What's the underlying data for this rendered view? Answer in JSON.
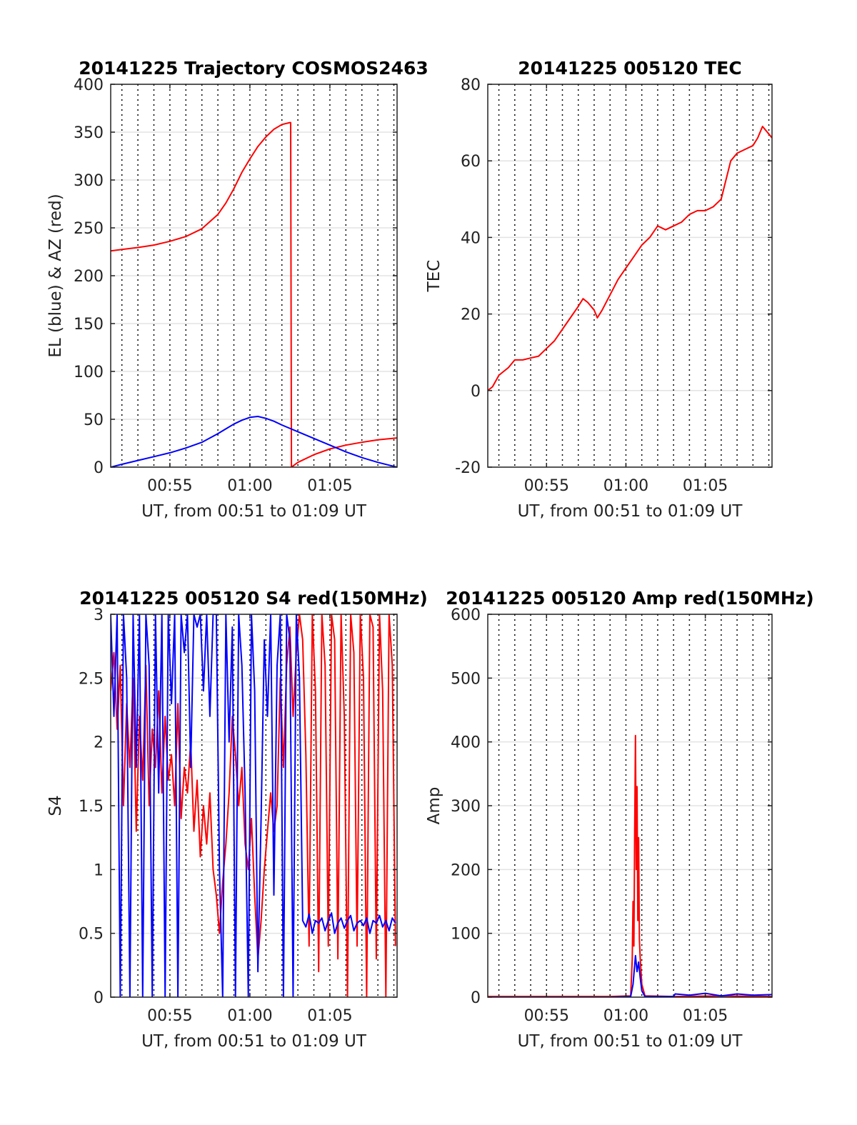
{
  "chart_data": [
    {
      "type": "line",
      "title": "20141225 Trajectory COSMOS2463",
      "xlabel": "UT, from 00:51 to 01:09 UT",
      "ylabel": "EL (blue) & AZ (red)",
      "x_unit": "minutes after 00:00 UT",
      "xlim": [
        51.3,
        69.2
      ],
      "ylim": [
        0,
        400
      ],
      "x_ticks": [
        55,
        60,
        65
      ],
      "x_tick_labels": [
        "00:55",
        "01:00",
        "01:05"
      ],
      "y_ticks": [
        0,
        50,
        100,
        150,
        200,
        250,
        300,
        350,
        400
      ],
      "y_tick_labels": [
        "0",
        "50",
        "100",
        "150",
        "200",
        "250",
        "300",
        "350",
        "400"
      ],
      "minor_dotted_gridlines_x": [
        52,
        53,
        54,
        55,
        56,
        57,
        58,
        59,
        60,
        61,
        62,
        63,
        64,
        65,
        66,
        67,
        68,
        69
      ],
      "grid": true,
      "series": [
        {
          "color": "#ff0000",
          "x": [
            51.3,
            52,
            53,
            54,
            55,
            56,
            57,
            58,
            58.5,
            59,
            59.5,
            60,
            60.5,
            61,
            61.5,
            62,
            62.5,
            62.55,
            62.6,
            63,
            64,
            65,
            66,
            67,
            68,
            69.2
          ],
          "y": [
            226,
            227.5,
            229.5,
            232,
            236,
            241,
            249,
            264,
            276,
            291,
            308,
            322,
            335,
            345,
            353,
            358,
            360,
            360,
            0,
            5,
            13,
            19,
            23,
            26,
            28.5,
            30.5
          ]
        },
        {
          "color": "#0000ff",
          "x": [
            51.3,
            52,
            53,
            54,
            55,
            56,
            57,
            58,
            58.5,
            59,
            59.5,
            60,
            60.5,
            61,
            61.5,
            62,
            63,
            64,
            65,
            66,
            67,
            68,
            69.2
          ],
          "y": [
            0,
            3,
            7,
            11,
            15,
            20,
            26,
            35,
            40,
            45,
            49,
            52,
            53,
            51,
            48,
            44,
            37,
            30,
            23,
            16,
            10,
            5,
            0
          ]
        }
      ]
    },
    {
      "type": "line",
      "title": "20141225 005120 TEC",
      "xlabel": "UT, from 00:51 to 01:09 UT",
      "ylabel": "TEC",
      "x_unit": "minutes after 00:00 UT",
      "xlim": [
        51.3,
        69.2
      ],
      "ylim": [
        -20,
        80
      ],
      "x_ticks": [
        55,
        60,
        65
      ],
      "x_tick_labels": [
        "00:55",
        "01:00",
        "01:05"
      ],
      "y_ticks": [
        -20,
        0,
        20,
        40,
        60,
        80
      ],
      "y_tick_labels": [
        "-20",
        "0",
        "20",
        "40",
        "60",
        "80"
      ],
      "minor_dotted_gridlines_x": [
        52,
        53,
        54,
        55,
        56,
        57,
        58,
        59,
        60,
        61,
        62,
        63,
        64,
        65,
        66,
        67,
        68,
        69
      ],
      "grid": true,
      "series": [
        {
          "color": "#ff0000",
          "x": [
            51.3,
            51.6,
            52,
            52.3,
            52.6,
            53,
            53.5,
            54,
            54.5,
            55,
            55.5,
            56,
            56.5,
            57,
            57.3,
            57.6,
            58,
            58.2,
            58.5,
            59,
            59.5,
            60,
            60.5,
            61,
            61.5,
            62,
            62.5,
            63,
            63.5,
            64,
            64.5,
            65,
            65.5,
            66,
            66.3,
            66.6,
            67,
            67.5,
            68,
            68.3,
            68.6,
            69,
            69.2
          ],
          "y": [
            0,
            1,
            4,
            5,
            6,
            8,
            8,
            8.5,
            9,
            11,
            13,
            16,
            19,
            22,
            24,
            23,
            21,
            19,
            21,
            25,
            29,
            32,
            35,
            38,
            40,
            43,
            42,
            43,
            44,
            46,
            47,
            47,
            48,
            50,
            55,
            60,
            62,
            63,
            64,
            66,
            69,
            67,
            66
          ]
        }
      ]
    },
    {
      "type": "line",
      "title": "20141225 005120 S4 red(150MHz)",
      "xlabel": "UT, from 00:51 to 01:09 UT",
      "ylabel": "S4",
      "x_unit": "minutes after 00:00 UT",
      "xlim": [
        51.3,
        69.2
      ],
      "ylim": [
        0,
        3
      ],
      "x_ticks": [
        55,
        60,
        65
      ],
      "x_tick_labels": [
        "00:55",
        "01:00",
        "01:05"
      ],
      "y_ticks": [
        0,
        0.5,
        1,
        1.5,
        2,
        2.5,
        3
      ],
      "y_tick_labels": [
        "0",
        "0.5",
        "1",
        "1.5",
        "2",
        "2.5",
        "3"
      ],
      "minor_dotted_gridlines_x": [
        52,
        53,
        54,
        55,
        56,
        57,
        58,
        59,
        60,
        61,
        62,
        63,
        64,
        65,
        66,
        67,
        68,
        69
      ],
      "grid": true,
      "series": [
        {
          "color": "#ff0000",
          "x": [
            51.3,
            51.5,
            51.7,
            51.9,
            52.1,
            52.3,
            52.5,
            52.7,
            52.9,
            53.1,
            53.3,
            53.5,
            53.7,
            53.9,
            54.1,
            54.3,
            54.5,
            54.7,
            54.9,
            55.1,
            55.3,
            55.5,
            55.7,
            55.9,
            56.1,
            56.3,
            56.5,
            56.7,
            56.9,
            57.1,
            57.3,
            57.5,
            57.7,
            57.9,
            58.1,
            58.3,
            58.5,
            58.7,
            58.9,
            59.1,
            59.3,
            59.5,
            59.7,
            59.9,
            60.1,
            60.3,
            60.5,
            60.7,
            60.9,
            61.1,
            61.3,
            61.5,
            61.7,
            61.9,
            62.1,
            62.3,
            62.5,
            62.7,
            62.9,
            63.1,
            63.3,
            63.5,
            63.7,
            63.9,
            64.1,
            64.3,
            64.5,
            64.7,
            64.9,
            65.1,
            65.3,
            65.5,
            65.7,
            65.9,
            66.1,
            66.3,
            66.5,
            66.7,
            66.9,
            67.1,
            67.3,
            67.5,
            67.7,
            67.9,
            68.1,
            68.3,
            68.5,
            68.7,
            68.9,
            69.1
          ],
          "y": [
            2.4,
            2.7,
            2.1,
            2.6,
            1.5,
            2.3,
            1.8,
            2.5,
            1.3,
            2.2,
            1.7,
            2.6,
            1.5,
            2.1,
            1.8,
            2.4,
            1.6,
            2.2,
            1.7,
            1.9,
            1.5,
            2.3,
            1.4,
            1.8,
            1.6,
            2.0,
            1.3,
            1.7,
            1.1,
            1.5,
            1.2,
            1.6,
            1.0,
            0.8,
            0.5,
            0.9,
            1.2,
            1.6,
            2.2,
            1.9,
            1.5,
            1.8,
            1.2,
            1.0,
            1.4,
            0.8,
            0.3,
            0.6,
            1.0,
            1.3,
            1.6,
            1.3,
            1.5,
            2.5,
            1.8,
            2.6,
            2.9,
            2.2,
            2.7,
            3.0,
            2.8,
            1.9,
            0.4,
            3.0,
            2.4,
            0.2,
            3.0,
            2.6,
            0.4,
            3.0,
            2.8,
            0.3,
            3.0,
            2.2,
            0.0,
            3.0,
            2.7,
            0.4,
            3.0,
            2.5,
            0.0,
            3.0,
            2.9,
            0.3,
            3.0,
            2.4,
            0.0,
            3.0,
            2.6,
            0.4
          ]
        },
        {
          "color": "#0000ff",
          "x": [
            51.3,
            51.5,
            51.7,
            51.9,
            52.1,
            52.3,
            52.5,
            52.7,
            52.9,
            53.1,
            53.3,
            53.5,
            53.7,
            53.9,
            54.1,
            54.3,
            54.5,
            54.7,
            54.9,
            55.1,
            55.3,
            55.5,
            55.7,
            55.9,
            56.1,
            56.3,
            56.5,
            56.7,
            56.9,
            57.1,
            57.3,
            57.5,
            57.7,
            57.9,
            58.1,
            58.3,
            58.5,
            58.7,
            58.9,
            59.1,
            59.3,
            59.5,
            59.7,
            59.9,
            60.1,
            60.3,
            60.5,
            60.7,
            60.9,
            61.1,
            61.3,
            61.5,
            61.7,
            61.9,
            62.1,
            62.3,
            62.5,
            62.7,
            62.9,
            63.1,
            63.3,
            63.5,
            63.7,
            63.9,
            64.1,
            64.3,
            64.5,
            64.7,
            64.9,
            65.1,
            65.3,
            65.5,
            65.7,
            65.9,
            66.1,
            66.3,
            66.5,
            66.7,
            66.9,
            67.1,
            67.3,
            67.5,
            67.7,
            67.9,
            68.1,
            68.3,
            68.5,
            68.7,
            68.9,
            69.1
          ],
          "y": [
            3.0,
            2.2,
            3.0,
            0.0,
            3.0,
            2.5,
            0.0,
            3.0,
            1.8,
            3.0,
            0.0,
            3.0,
            2.6,
            0.0,
            3.0,
            1.6,
            3.0,
            0.0,
            3.0,
            2.3,
            3.0,
            0.0,
            3.0,
            2.7,
            3.0,
            1.8,
            3.0,
            2.9,
            3.0,
            2.4,
            3.0,
            2.2,
            3.0,
            3.0,
            1.0,
            0.0,
            3.0,
            2.0,
            2.9,
            0.0,
            3.0,
            2.6,
            1.6,
            0.0,
            3.0,
            2.4,
            0.2,
            1.4,
            2.8,
            2.2,
            3.0,
            0.8,
            2.6,
            3.0,
            0.0,
            3.0,
            2.8,
            0.0,
            3.0,
            2.5,
            0.6,
            0.55,
            0.65,
            0.5,
            0.6,
            0.58,
            0.62,
            0.52,
            0.6,
            0.66,
            0.5,
            0.58,
            0.62,
            0.54,
            0.6,
            0.64,
            0.52,
            0.58,
            0.6,
            0.56,
            0.62,
            0.5,
            0.6,
            0.58,
            0.64,
            0.55,
            0.6,
            0.52,
            0.62,
            0.58
          ]
        }
      ]
    },
    {
      "type": "line",
      "title": "20141225 005120 Amp red(150MHz)",
      "xlabel": "UT, from 00:51 to 01:09 UT",
      "ylabel": "Amp",
      "x_unit": "minutes after 00:00 UT",
      "xlim": [
        51.3,
        69.2
      ],
      "ylim": [
        0,
        600
      ],
      "x_ticks": [
        55,
        60,
        65
      ],
      "x_tick_labels": [
        "00:55",
        "01:00",
        "01:05"
      ],
      "y_ticks": [
        0,
        100,
        200,
        300,
        400,
        500,
        600
      ],
      "y_tick_labels": [
        "0",
        "100",
        "200",
        "300",
        "400",
        "500",
        "600"
      ],
      "minor_dotted_gridlines_x": [
        52,
        53,
        54,
        55,
        56,
        57,
        58,
        59,
        60,
        61,
        62,
        63,
        64,
        65,
        66,
        67,
        68,
        69
      ],
      "grid": true,
      "series": [
        {
          "color": "#ff0000",
          "x": [
            51.3,
            55,
            59,
            60.3,
            60.4,
            60.45,
            60.5,
            60.55,
            60.6,
            60.65,
            60.7,
            60.75,
            60.8,
            60.85,
            60.9,
            61.0,
            61.2,
            63,
            66,
            69.2
          ],
          "y": [
            1,
            1,
            1,
            2,
            60,
            150,
            80,
            260,
            410,
            200,
            330,
            120,
            250,
            90,
            60,
            20,
            2,
            1,
            2,
            1
          ]
        },
        {
          "color": "#0000ff",
          "x": [
            51.3,
            55,
            59,
            60.3,
            60.45,
            60.6,
            60.7,
            60.8,
            60.9,
            61.0,
            61.2,
            63,
            63.1,
            64,
            65,
            66,
            67,
            68,
            69.2
          ],
          "y": [
            0,
            0,
            0,
            1,
            20,
            65,
            40,
            55,
            30,
            10,
            1,
            1,
            5,
            3,
            6,
            2,
            5,
            3,
            4
          ]
        }
      ]
    }
  ]
}
